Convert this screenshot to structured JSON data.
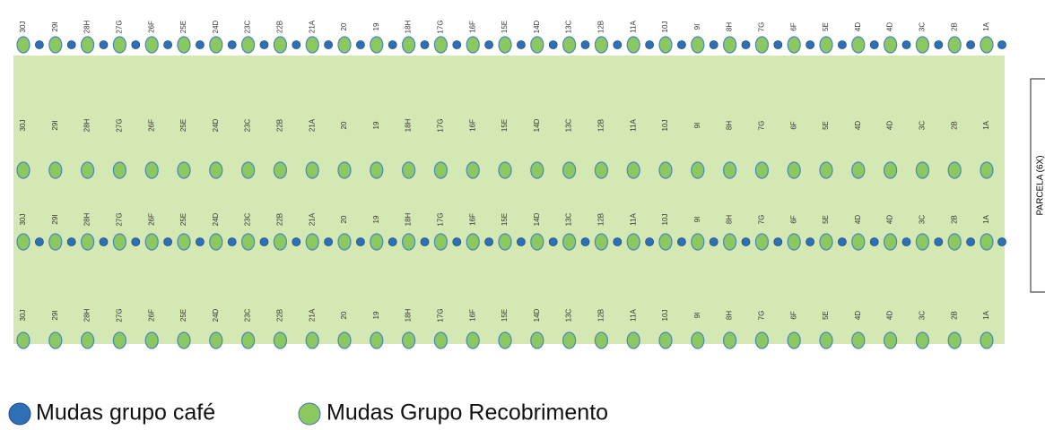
{
  "rows": [
    {
      "labels": [
        "30J",
        "29I",
        "28H",
        "27G",
        "26F",
        "25E",
        "24D",
        "23C",
        "22B",
        "21A",
        "20",
        "19",
        "18H",
        "17G",
        "16F",
        "15E",
        "14D",
        "13C",
        "12B",
        "11A",
        "10J",
        "9I",
        "8H",
        "7G",
        "6F",
        "5E",
        "4D",
        "4D",
        "3C",
        "2B",
        "1A"
      ]
    },
    {
      "labels": [
        "30J",
        "29I",
        "28H",
        "27G",
        "26F",
        "25E",
        "24D",
        "23C",
        "22B",
        "21A",
        "20",
        "19",
        "18H",
        "17G",
        "16F",
        "15E",
        "14D",
        "13C",
        "12B",
        "11A",
        "10J",
        "9I",
        "8H",
        "7G",
        "6F",
        "5E",
        "4D",
        "4D",
        "3C",
        "2B",
        "1A"
      ]
    },
    {
      "labels": [
        "30J",
        "29I",
        "28H",
        "27G",
        "26F",
        "25E",
        "24D",
        "23C",
        "22B",
        "21A",
        "20",
        "19",
        "18H",
        "17G",
        "16F",
        "15E",
        "14D",
        "13C",
        "12B",
        "11A",
        "10J",
        "9I",
        "8H",
        "7G",
        "6F",
        "5E",
        "4D",
        "4D",
        "3C",
        "2B",
        "1A"
      ]
    },
    {
      "labels": [
        "30J",
        "29I",
        "28H",
        "27G",
        "26F",
        "25E",
        "24D",
        "23C",
        "22B",
        "21A",
        "20",
        "19",
        "18H",
        "17G",
        "16F",
        "15E",
        "14D",
        "13C",
        "12B",
        "11A",
        "10J",
        "9I",
        "8H",
        "7G",
        "6F",
        "5E",
        "4D",
        "4D",
        "3C",
        "2B",
        "1A"
      ]
    }
  ],
  "side_label": "PARCELA (6X)",
  "legend": [
    {
      "label": "Mudas grupo café"
    },
    {
      "label": "Mudas Grupo Recobrimento"
    }
  ]
}
